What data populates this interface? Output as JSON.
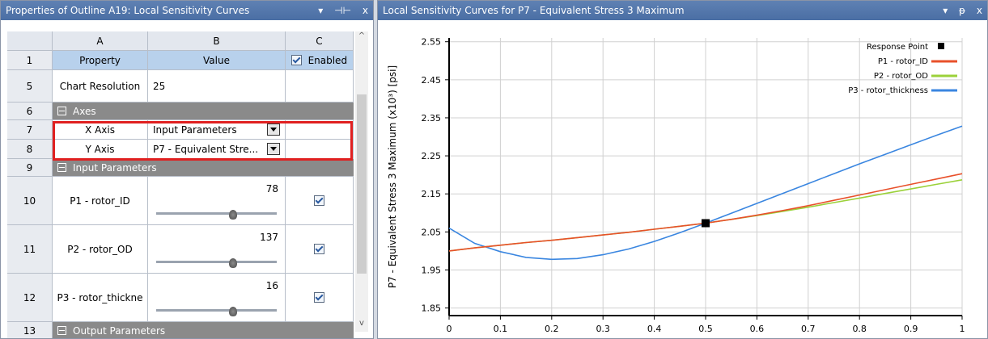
{
  "left_panel": {
    "title": "Properties of Outline A19: Local Sensitivity Curves",
    "btn_pin": "▾",
    "btn_dock": "⊣⊢",
    "btn_close": "x",
    "columns": {
      "blank": "",
      "a": "A",
      "b": "B",
      "c": "C"
    },
    "rows": {
      "r1": {
        "num": "1",
        "property": "Property",
        "value": "Value",
        "enabled": "Enabled"
      },
      "r5": {
        "num": "5",
        "property": "Chart Resolution",
        "value": "25"
      },
      "r6": {
        "num": "6",
        "group": "Axes"
      },
      "r7": {
        "num": "7",
        "property": "X Axis",
        "value": "Input Parameters"
      },
      "r8": {
        "num": "8",
        "property": "Y Axis",
        "value": "P7 - Equivalent Stre..."
      },
      "r9": {
        "num": "9",
        "group": "Input Parameters"
      },
      "r10": {
        "num": "10",
        "property": "P1 - rotor_ID",
        "value": "78",
        "slider_fraction": 0.62
      },
      "r11": {
        "num": "11",
        "property": "P2 - rotor_OD",
        "value": "137",
        "slider_fraction": 0.62
      },
      "r12": {
        "num": "12",
        "property": "P3 - rotor_thickne",
        "value": "16",
        "slider_fraction": 0.62
      },
      "r13": {
        "num": "13",
        "group": "Output Parameters"
      }
    },
    "scroll_up": "^",
    "scroll_down": "v"
  },
  "right_panel": {
    "title": "Local Sensitivity Curves for P7 - Equivalent Stress 3 Maximum",
    "btn_pin": "▾",
    "btn_dock": "ᵽ",
    "btn_close": "x"
  },
  "chart_data": {
    "type": "line",
    "title": "",
    "ylabel": "P7 - Equivalent Stress 3 Maximum  (x10³)  [psi]",
    "xlabel": "",
    "xlim": [
      0,
      1
    ],
    "ylim": [
      1.83,
      2.56
    ],
    "xticks": [
      "0",
      "0.1",
      "0.2",
      "0.3",
      "0.4",
      "0.5",
      "0.6",
      "0.7",
      "0.8",
      "0.9",
      "1"
    ],
    "yticks": [
      "1.85",
      "1.95",
      "2.05",
      "2.15",
      "2.25",
      "2.35",
      "2.45",
      "2.55"
    ],
    "grid": true,
    "legend_position": "top-right",
    "response_point": {
      "name": "Response Point",
      "x": 0.5,
      "y": 2.073
    },
    "x": [
      0,
      0.05,
      0.1,
      0.15,
      0.2,
      0.25,
      0.3,
      0.35,
      0.4,
      0.45,
      0.5,
      0.55,
      0.6,
      0.65,
      0.7,
      0.75,
      0.8,
      0.85,
      0.9,
      0.95,
      1
    ],
    "series": [
      {
        "name": "P1 - rotor_ID",
        "color": "#e8502a",
        "values": [
          2.0,
          2.008,
          2.015,
          2.022,
          2.028,
          2.035,
          2.042,
          2.049,
          2.057,
          2.065,
          2.073,
          2.083,
          2.094,
          2.106,
          2.119,
          2.133,
          2.147,
          2.161,
          2.175,
          2.189,
          2.203
        ]
      },
      {
        "name": "P2 - rotor_OD",
        "color": "#9bd13a",
        "values": [
          2.0,
          2.008,
          2.015,
          2.022,
          2.028,
          2.035,
          2.042,
          2.049,
          2.057,
          2.065,
          2.073,
          2.083,
          2.093,
          2.104,
          2.115,
          2.127,
          2.139,
          2.151,
          2.163,
          2.175,
          2.187
        ]
      },
      {
        "name": "P3 - rotor_thickness",
        "color": "#3a86e0",
        "values": [
          2.06,
          2.02,
          1.998,
          1.983,
          1.978,
          1.98,
          1.99,
          2.005,
          2.025,
          2.048,
          2.073,
          2.099,
          2.125,
          2.151,
          2.177,
          2.203,
          2.229,
          2.254,
          2.279,
          2.304,
          2.328
        ]
      }
    ]
  }
}
